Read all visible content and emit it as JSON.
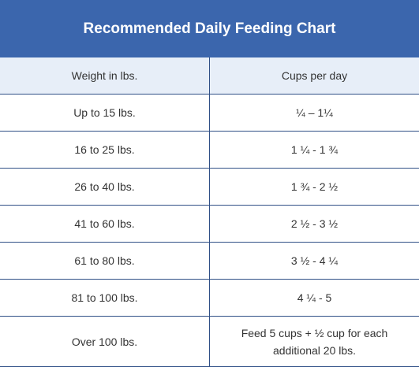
{
  "title": "Recommended Daily Feeding Chart",
  "table": {
    "header": [
      "Weight in lbs.",
      "Cups per day"
    ],
    "rows": [
      [
        "Up to 15 lbs.",
        "¼ – 1¼"
      ],
      [
        "16 to 25 lbs.",
        "1 ¼ - 1 ¾"
      ],
      [
        "26 to 40 lbs.",
        "1 ¾ - 2 ½"
      ],
      [
        "41 to 60 lbs.",
        "2 ½ - 3 ½"
      ],
      [
        "61 to 80 lbs.",
        "3 ½ - 4 ¼"
      ],
      [
        "81 to 100 lbs.",
        "4 ¼ - 5"
      ],
      [
        "Over 100 lbs.",
        "Feed 5 cups + ½ cup for each additional 20 lbs."
      ]
    ]
  }
}
